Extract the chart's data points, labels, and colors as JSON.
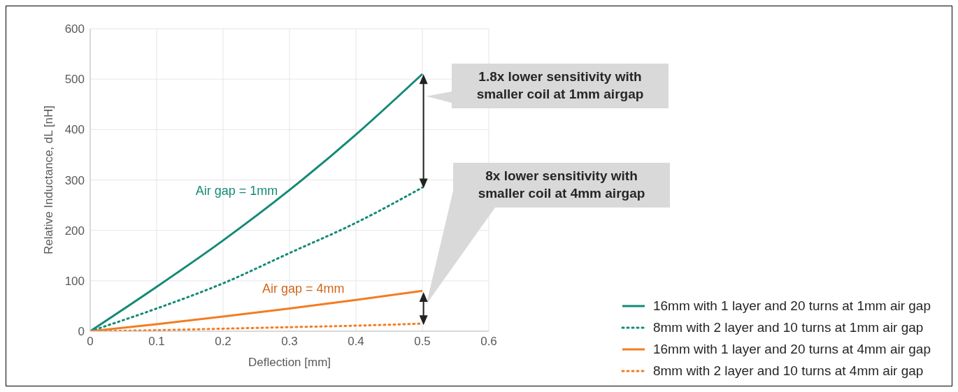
{
  "chart_data": {
    "type": "line",
    "xlabel": "Deflection [mm]",
    "ylabel": "Relative Inductance, dL [nH]",
    "x": [
      0,
      0.1,
      0.2,
      0.3,
      0.4,
      0.5
    ],
    "series": [
      {
        "name": "16mm with 1 layer and 20 turns at 1mm air gap",
        "color": "#138a76",
        "line_style": "solid",
        "values": [
          0,
          88,
          180,
          280,
          390,
          510
        ]
      },
      {
        "name": "8mm with 2 layer and 10 turns at 1mm air gap",
        "color": "#138a76",
        "line_style": "dotted",
        "values": [
          0,
          45,
          95,
          155,
          215,
          285
        ]
      },
      {
        "name": "16mm with 1 layer and 20 turns at 4mm air gap",
        "color": "#f47c20",
        "line_style": "solid",
        "values": [
          0,
          14,
          29,
          45,
          62,
          80
        ]
      },
      {
        "name": "8mm with 2 layer and 10 turns at 4mm air gap",
        "color": "#f47c20",
        "line_style": "dotted",
        "values": [
          0,
          2,
          5,
          8,
          11,
          15
        ]
      }
    ],
    "xlim": [
      0,
      0.6
    ],
    "xticks": [
      0,
      0.1,
      0.2,
      0.3,
      0.4,
      0.5,
      0.6
    ],
    "ylim": [
      0,
      600
    ],
    "yticks": [
      0,
      100,
      200,
      300,
      400,
      500,
      600
    ],
    "grid": true,
    "legend": "bottom right",
    "marker": "none",
    "annotations": [
      "Air gap = 1mm",
      "Air gap = 4mm",
      "1.8x lower sensitivity with smaller coil at 1mm airgap",
      "8x lower sensitivity with smaller coil at 4mm airgap"
    ]
  }
}
